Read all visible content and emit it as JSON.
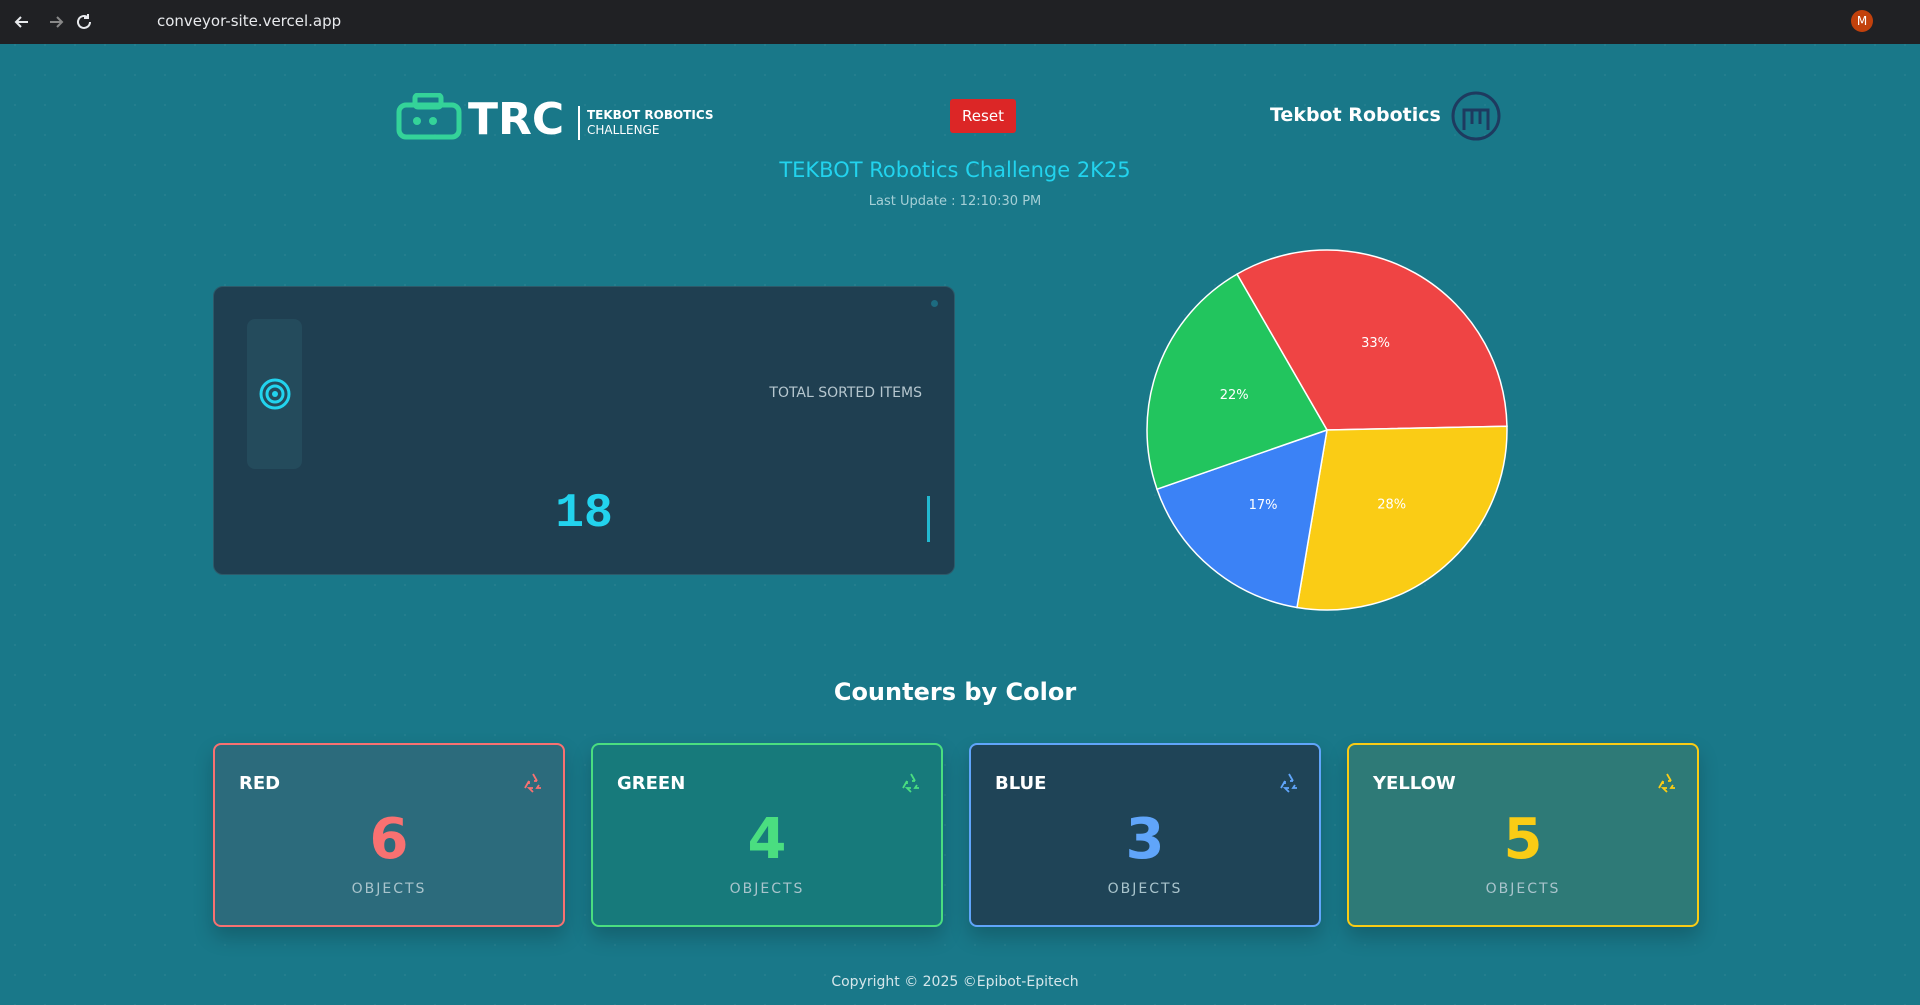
{
  "browser": {
    "url": "conveyor-site.vercel.app",
    "avatar": "M"
  },
  "header": {
    "logo_text": "TRC",
    "logo_line1": "TEKBOT ROBOTICS",
    "logo_line2": "CHALLENGE",
    "reset": "Reset",
    "brand": "Tekbot Robotics"
  },
  "title": "TEKBOT Robotics Challenge 2K25",
  "last_update": "Last Update : 12:10:30 PM",
  "total": {
    "label": "TOTAL SORTED ITEMS",
    "value": 18
  },
  "chart_data": {
    "type": "pie",
    "values": [
      33,
      28,
      17,
      22
    ],
    "value_labels": [
      "33%",
      "28%",
      "17%",
      "22%"
    ],
    "colors": [
      "#ef4444",
      "#facc15",
      "#3b82f6",
      "#22c55e"
    ]
  },
  "counters": {
    "title": "Counters by Color",
    "items": [
      {
        "name": "RED",
        "value": 6,
        "unit": "OBJECTS",
        "color": "#f87171"
      },
      {
        "name": "GREEN",
        "value": 4,
        "unit": "OBJECTS",
        "color": "#4ade80"
      },
      {
        "name": "BLUE",
        "value": 3,
        "unit": "OBJECTS",
        "color": "#60a5fa"
      },
      {
        "name": "YELLOW",
        "value": 5,
        "unit": "OBJECTS",
        "color": "#facc15"
      }
    ]
  },
  "footer": "Copyright © 2025 ©Epibot-Epitech"
}
